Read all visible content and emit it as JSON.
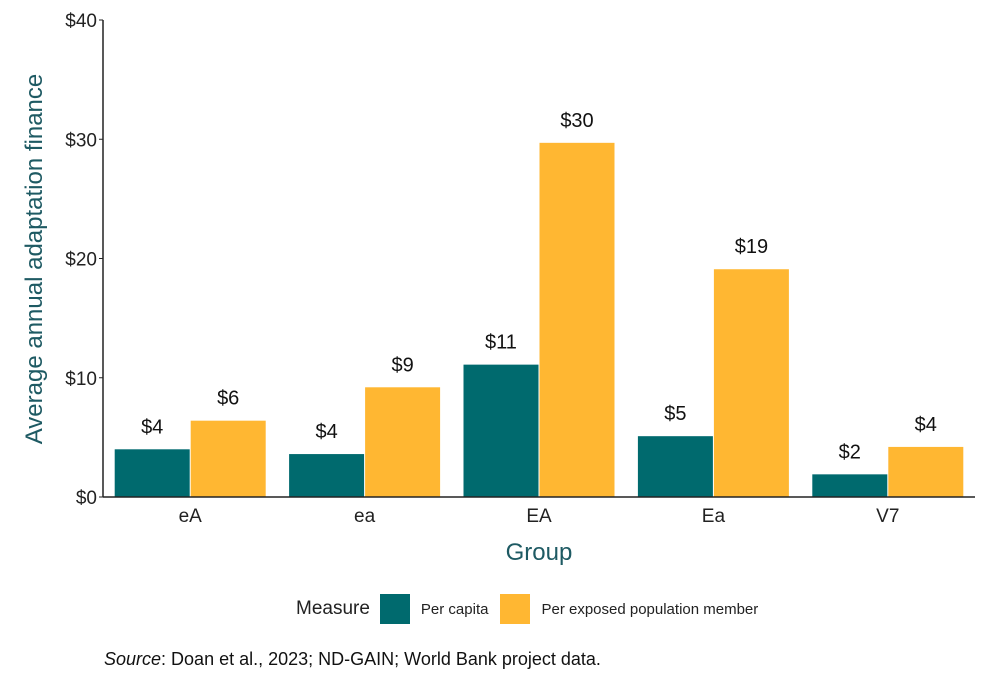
{
  "chart_data": {
    "type": "bar",
    "categories": [
      "eA",
      "ea",
      "EA",
      "Ea",
      "V7"
    ],
    "series": [
      {
        "name": "Per capita",
        "values": [
          4,
          3.6,
          11.1,
          5.1,
          1.9
        ],
        "labels": [
          "$4",
          "$4",
          "$11",
          "$5",
          "$2"
        ],
        "color": "#006a6e"
      },
      {
        "name": "Per exposed population member",
        "values": [
          6.4,
          9.2,
          29.7,
          19.1,
          4.2
        ],
        "labels": [
          "$6",
          "$9",
          "$30",
          "$19",
          "$4"
        ],
        "color": "#ffb732"
      }
    ],
    "xlabel": "Group",
    "ylabel": "Average annual adaptation finance",
    "ylim": [
      0,
      40
    ],
    "yticks": [
      0,
      10,
      20,
      30,
      40
    ],
    "ytick_labels": [
      "$0",
      "$10",
      "$20",
      "$30",
      "$40"
    ],
    "legend_title": "Measure",
    "legend_position": "bottom",
    "grid": false,
    "axis_title_color": "#1e5a63"
  },
  "source": {
    "label": "Source",
    "text": ": Doan et al., 2023; ND-GAIN; World Bank project data."
  }
}
